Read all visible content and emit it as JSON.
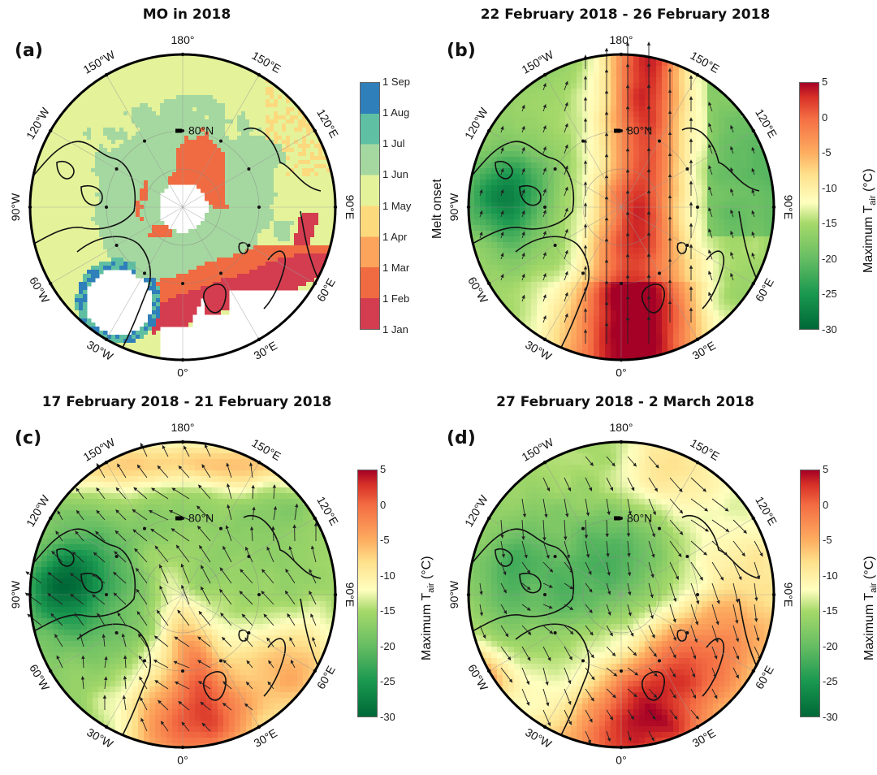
{
  "figure": {
    "description": "Four north polar stereographic maps of the Arctic"
  },
  "chart_data": [
    {
      "type": "heatmap",
      "panel": "(a)",
      "title": "MO in 2018",
      "projection": "north polar stereographic",
      "longitude_labels": [
        "180°",
        "150°E",
        "120°E",
        "90°E",
        "60°E",
        "30°E",
        "0°",
        "30°W",
        "60°W",
        "90°W",
        "120°W",
        "150°W"
      ],
      "latitude_label": "80°N",
      "colorbar": {
        "label": "Melt onset",
        "type": "discrete",
        "ticks": [
          "1 Sep",
          "1 Aug",
          "1 Jul",
          "1 Jun",
          "1 May",
          "1 Apr",
          "1 Mar",
          "1 Feb",
          "1 Jan"
        ],
        "colors": [
          "#2f7fba",
          "#5fbfa2",
          "#a5d8a0",
          "#e4f29a",
          "#fdd97e",
          "#fca45c",
          "#f06b42",
          "#d43d4f"
        ]
      },
      "regions": [
        {
          "area": "Central Arctic / Beaufort-Chukchi",
          "category": "1 Jun - 1 Jul"
        },
        {
          "area": "Pacific-side periphery",
          "category": "1 May - 1 Jun"
        },
        {
          "area": "Sector 80°N toward pole (150°E–180°)",
          "category": "1 Feb - 1 Mar"
        },
        {
          "area": "Barents/Kara Sea margin",
          "category": "1 Jan - 1 Feb"
        },
        {
          "area": "Greenland ice sheet interior",
          "category": "no data"
        },
        {
          "area": "Pole hole",
          "category": "no data"
        }
      ],
      "wind_vectors": false
    },
    {
      "type": "heatmap",
      "panel": "(b)",
      "title": "22 February 2018 - 26 February 2018",
      "projection": "north polar stereographic",
      "longitude_labels": [
        "180°",
        "150°E",
        "120°E",
        "90°E",
        "60°E",
        "30°E",
        "0°",
        "30°W",
        "60°W",
        "90°W",
        "120°W",
        "150°W"
      ],
      "latitude_label": "80°N",
      "colorbar": {
        "label": "Maximum T",
        "label_sub": "air",
        "label_unit": "(°C)",
        "range": [
          -30,
          5
        ],
        "ticks": [
          "5",
          "0",
          "-5",
          "-10",
          "-15",
          "-20",
          "-25",
          "-30"
        ]
      },
      "pattern": "warm tongue (> 0 °C) from Atlantic/Greenland Sea across the pole toward 180°; cold (< -25 °C) over Canadian Archipelago",
      "wind": "strong southerly flow across the pole from Atlantic sector",
      "wind_vectors": true,
      "wind_dir_deg": 0
    },
    {
      "type": "heatmap",
      "panel": "(c)",
      "title": "17 February 2018 - 21 February 2018",
      "projection": "north polar stereographic",
      "longitude_labels": [
        "180°",
        "150°E",
        "120°E",
        "90°E",
        "60°E",
        "30°E",
        "0°",
        "30°W",
        "60°W",
        "90°W",
        "120°W",
        "150°W"
      ],
      "latitude_label": "80°N",
      "colorbar": {
        "label": "Maximum T",
        "label_sub": "air",
        "label_unit": "(°C)",
        "range": [
          -30,
          5
        ],
        "ticks": [
          "5",
          "0",
          "-5",
          "-10",
          "-15",
          "-20",
          "-25",
          "-30"
        ]
      },
      "pattern": "warm air over Greenland/Barents seas extending poleward; warm band near 180°; cold over Canadian Archipelago",
      "wind_vectors": true,
      "wind_dir_deg": 330
    },
    {
      "type": "heatmap",
      "panel": "(d)",
      "title": "27 February 2018 - 2 March 2018",
      "projection": "north polar stereographic",
      "longitude_labels": [
        "180°",
        "150°E",
        "120°E",
        "90°E",
        "60°E",
        "30°E",
        "0°",
        "30°W",
        "60°W",
        "90°W",
        "120°W",
        "150°W"
      ],
      "latitude_label": "80°N",
      "colorbar": {
        "label": "Maximum T",
        "label_sub": "air",
        "label_unit": "(°C)",
        "range": [
          -30,
          5
        ],
        "ticks": [
          "5",
          "0",
          "-5",
          "-10",
          "-15",
          "-20",
          "-25",
          "-30"
        ]
      },
      "pattern": "cold air over central Arctic and Canadian side; warm air over Barents/Kara seas and Atlantic sector",
      "wind_vectors": true,
      "wind_dir_deg": 150
    }
  ]
}
